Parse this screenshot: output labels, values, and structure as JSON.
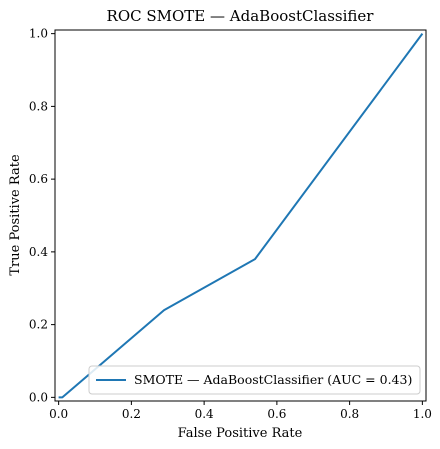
{
  "chart_data": {
    "type": "line",
    "title": "ROC SMOTE — AdaBoostClassifier",
    "xlabel": "False Positive Rate",
    "ylabel": "True Positive Rate",
    "xlim": [
      -0.01,
      1.01
    ],
    "ylim": [
      -0.01,
      1.01
    ],
    "xticks": [
      "0.0",
      "0.2",
      "0.4",
      "0.6",
      "0.8",
      "1.0"
    ],
    "yticks": [
      "0.0",
      "0.2",
      "0.4",
      "0.6",
      "0.8",
      "1.0"
    ],
    "grid": false,
    "legend_position": "lower-right",
    "series": [
      {
        "name": "SMOTE — AdaBoostClassifier (AUC = 0.43)",
        "color": "#1f77b4",
        "x": [
          0.0,
          0.01,
          0.29,
          0.54,
          1.0
        ],
        "y": [
          0.0,
          0.0,
          0.24,
          0.38,
          1.0
        ]
      }
    ]
  }
}
